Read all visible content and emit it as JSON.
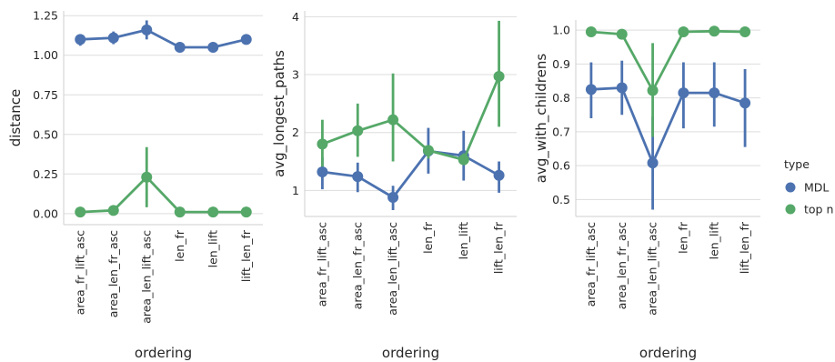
{
  "chart_data": [
    {
      "type": "line",
      "xlabel": "ordering",
      "ylabel": "distance",
      "categories": [
        "area_fr_lift_asc",
        "area_len_fr_asc",
        "area_len_lift_asc",
        "len_fr",
        "len_lift",
        "lift_len_fr"
      ],
      "ylim": [
        -0.07,
        1.28
      ],
      "yticks": [
        0.0,
        0.25,
        0.5,
        0.75,
        1.0,
        1.25
      ],
      "ytick_labels": [
        "0.00",
        "0.25",
        "0.50",
        "0.75",
        "1.00",
        "1.25"
      ],
      "grid": true,
      "series": [
        {
          "name": "MDL",
          "color": "#4c72b0",
          "values": [
            1.1,
            1.11,
            1.16,
            1.05,
            1.05,
            1.1
          ],
          "ci_low": [
            1.06,
            1.07,
            1.1,
            1.04,
            1.04,
            1.08
          ],
          "ci_high": [
            1.13,
            1.15,
            1.22,
            1.06,
            1.06,
            1.12
          ]
        },
        {
          "name": "top n",
          "color": "#55a868",
          "values": [
            0.01,
            0.02,
            0.23,
            0.01,
            0.01,
            0.01
          ],
          "ci_low": [
            0.0,
            0.01,
            0.04,
            0.0,
            0.0,
            0.0
          ],
          "ci_high": [
            0.02,
            0.03,
            0.42,
            0.02,
            0.02,
            0.02
          ]
        }
      ]
    },
    {
      "type": "line",
      "xlabel": "ordering",
      "ylabel": "avg_longest_paths",
      "categories": [
        "area_fr_lift_asc",
        "area_len_fr_asc",
        "area_len_lift_asc",
        "len_fr",
        "len_lift",
        "lift_len_fr"
      ],
      "ylim": [
        0.55,
        4.1
      ],
      "yticks": [
        1,
        2,
        3,
        4
      ],
      "ytick_labels": [
        "1",
        "2",
        "3",
        "4"
      ],
      "grid": true,
      "series": [
        {
          "name": "MDL",
          "color": "#4c72b0",
          "values": [
            1.32,
            1.24,
            0.88,
            1.68,
            1.6,
            1.26
          ],
          "ci_low": [
            1.02,
            0.97,
            0.66,
            1.29,
            1.17,
            0.96
          ],
          "ci_high": [
            1.57,
            1.48,
            1.08,
            2.08,
            2.03,
            1.5
          ]
        },
        {
          "name": "top n",
          "color": "#55a868",
          "values": [
            1.8,
            2.03,
            2.22,
            1.69,
            1.53,
            2.97
          ],
          "ci_low": [
            1.41,
            1.58,
            1.5,
            1.55,
            1.44,
            2.1
          ],
          "ci_high": [
            2.22,
            2.5,
            3.02,
            1.76,
            1.64,
            3.93
          ]
        }
      ]
    },
    {
      "type": "line",
      "xlabel": "ordering",
      "ylabel": "avg_with_childrens",
      "categories": [
        "area_fr_lift_asc",
        "area_len_fr_asc",
        "area_len_lift_asc",
        "len_fr",
        "len_lift",
        "lift_len_fr"
      ],
      "ylim": [
        0.45,
        1.03
      ],
      "yticks": [
        0.5,
        0.6,
        0.7,
        0.8,
        0.9,
        1.0
      ],
      "ytick_labels": [
        "0.5",
        "0.6",
        "0.7",
        "0.8",
        "0.9",
        "1.0"
      ],
      "grid": true,
      "series": [
        {
          "name": "MDL",
          "color": "#4c72b0",
          "values": [
            0.825,
            0.83,
            0.608,
            0.815,
            0.815,
            0.785
          ],
          "ci_low": [
            0.74,
            0.75,
            0.47,
            0.71,
            0.715,
            0.655
          ],
          "ci_high": [
            0.905,
            0.91,
            0.745,
            0.905,
            0.905,
            0.885
          ]
        },
        {
          "name": "top n",
          "color": "#55a868",
          "values": [
            0.995,
            0.988,
            0.822,
            0.995,
            0.997,
            0.995
          ],
          "ci_low": [
            0.99,
            0.983,
            0.685,
            0.99,
            0.992,
            0.99
          ],
          "ci_high": [
            0.999,
            0.993,
            0.962,
            0.999,
            1.0,
            0.999
          ]
        }
      ]
    }
  ],
  "legend": {
    "title": "type",
    "placement": "right",
    "items": [
      {
        "label": "MDL",
        "color": "#4c72b0"
      },
      {
        "label": "top n",
        "color": "#55a868"
      }
    ]
  }
}
